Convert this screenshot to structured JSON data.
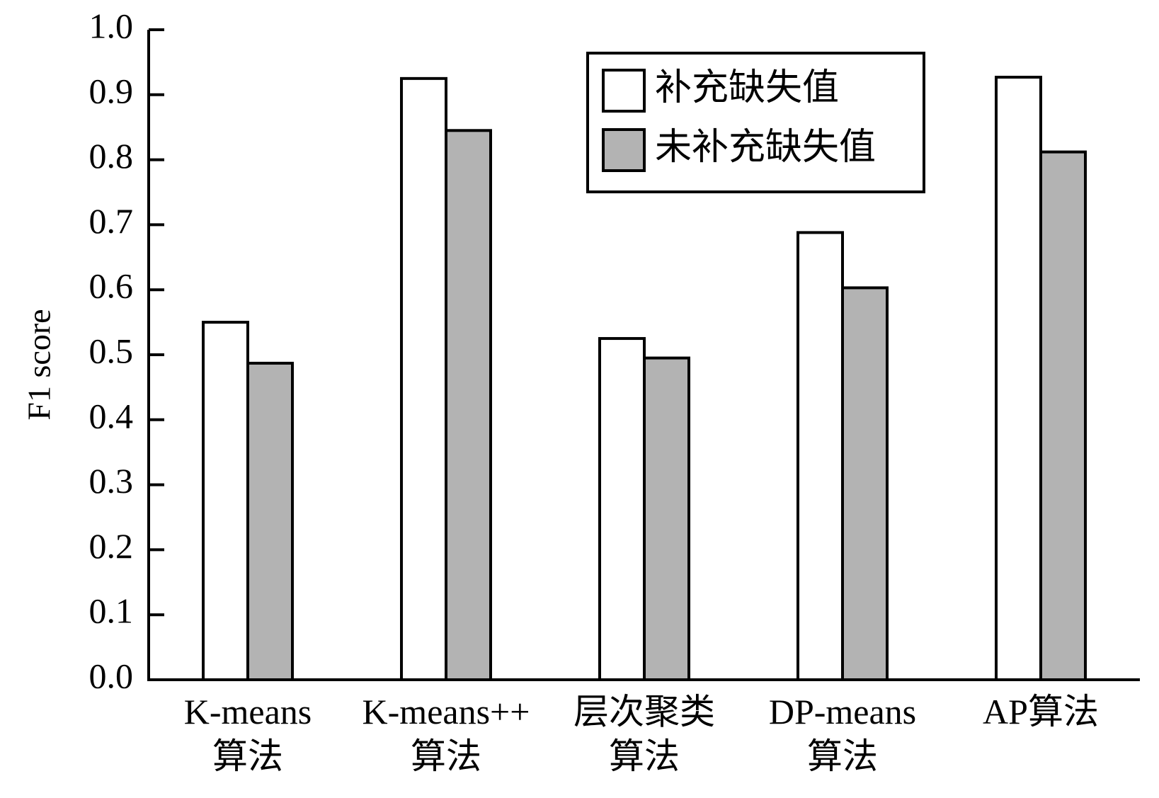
{
  "chart_data": {
    "type": "bar",
    "title": "",
    "xlabel": "",
    "ylabel": "F1 score",
    "ylim": [
      0,
      1.0
    ],
    "yticks": [
      "0.0",
      "0.1",
      "0.2",
      "0.3",
      "0.4",
      "0.5",
      "0.6",
      "0.7",
      "0.8",
      "0.9",
      "1.0"
    ],
    "categories": [
      [
        "K-means",
        "算法"
      ],
      [
        "K-means++",
        "算法"
      ],
      [
        "层次聚类",
        "算法"
      ],
      [
        "DP-means",
        "算法"
      ],
      [
        "AP算法"
      ]
    ],
    "series": [
      {
        "name": "补充缺失值",
        "color": "#ffffff",
        "values": [
          0.55,
          0.925,
          0.525,
          0.688,
          0.927
        ]
      },
      {
        "name": "未补充缺失值",
        "color": "#b3b3b3",
        "values": [
          0.487,
          0.845,
          0.495,
          0.603,
          0.812
        ]
      }
    ],
    "legend_position": "top-right",
    "grid": false
  }
}
